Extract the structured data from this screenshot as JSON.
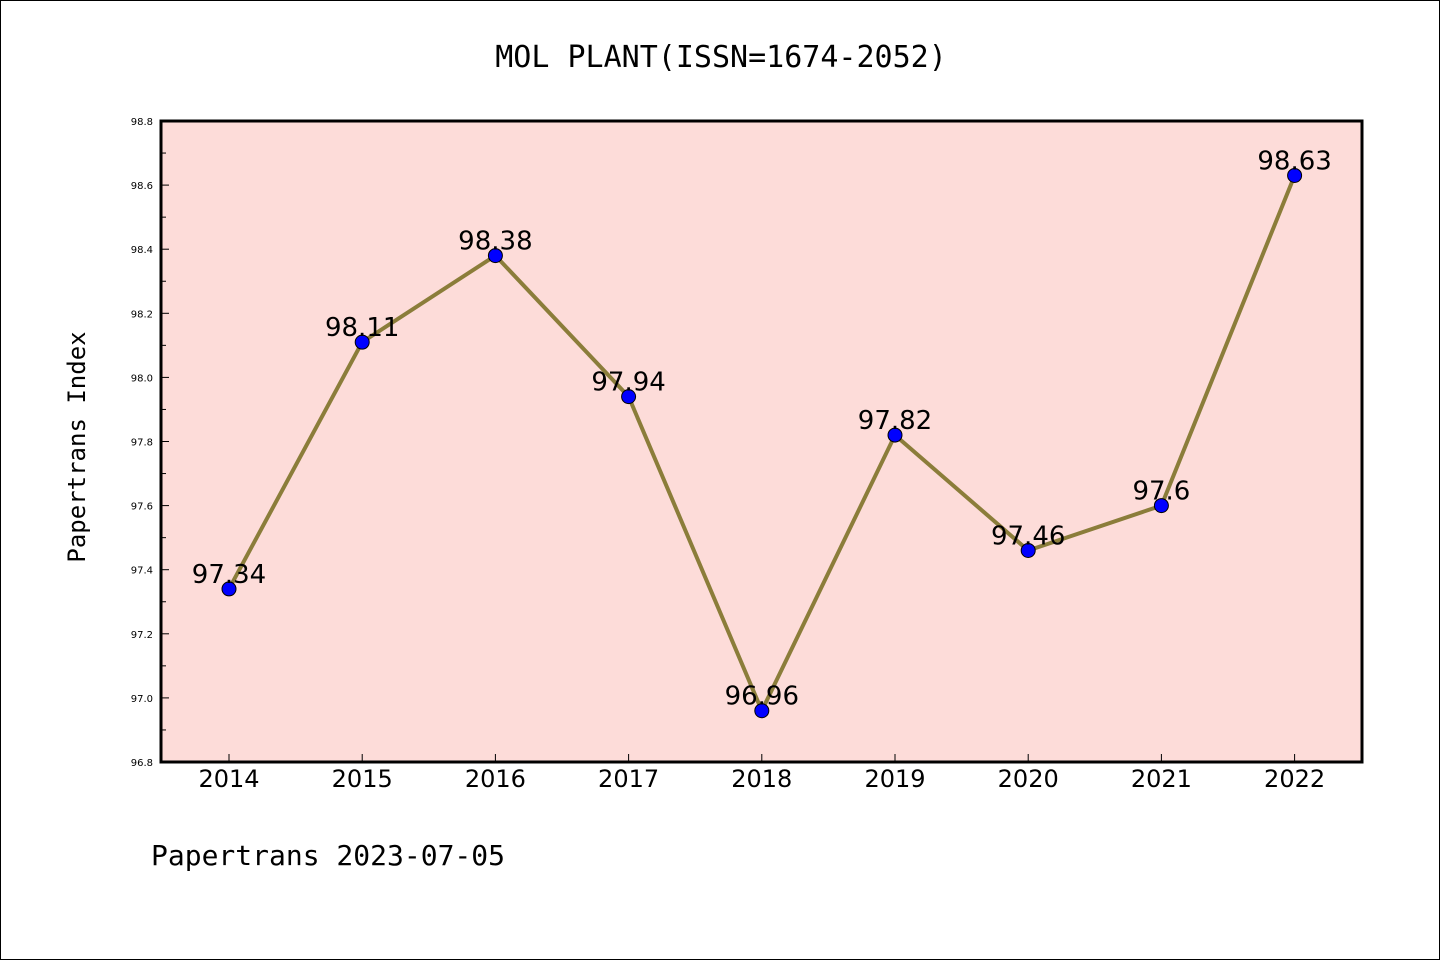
{
  "footer": "Papertrans 2023-07-05",
  "colors": {
    "plot_background": "#fddcd9",
    "line": "#8b7d3a",
    "marker": "#0000ff"
  },
  "chart_data": {
    "type": "line",
    "title": "MOL PLANT(ISSN=1674-2052)",
    "xlabel": "",
    "ylabel": "Papertrans Index",
    "categories": [
      "2014",
      "2015",
      "2016",
      "2017",
      "2018",
      "2019",
      "2020",
      "2021",
      "2022"
    ],
    "values": [
      97.34,
      98.11,
      98.38,
      97.94,
      96.96,
      97.82,
      97.46,
      97.6,
      98.63
    ],
    "data_labels": [
      "97.34",
      "98.11",
      "98.38",
      "97.94",
      "96.96",
      "97.82",
      "97.46",
      "97.6",
      "98.63"
    ],
    "ylim": [
      96.8,
      98.8
    ],
    "yticks": [
      "96.8",
      "97.0",
      "97.2",
      "97.4",
      "97.6",
      "97.8",
      "98.0",
      "98.2",
      "98.4",
      "98.6",
      "98.8"
    ],
    "grid": false,
    "legend": "none"
  }
}
